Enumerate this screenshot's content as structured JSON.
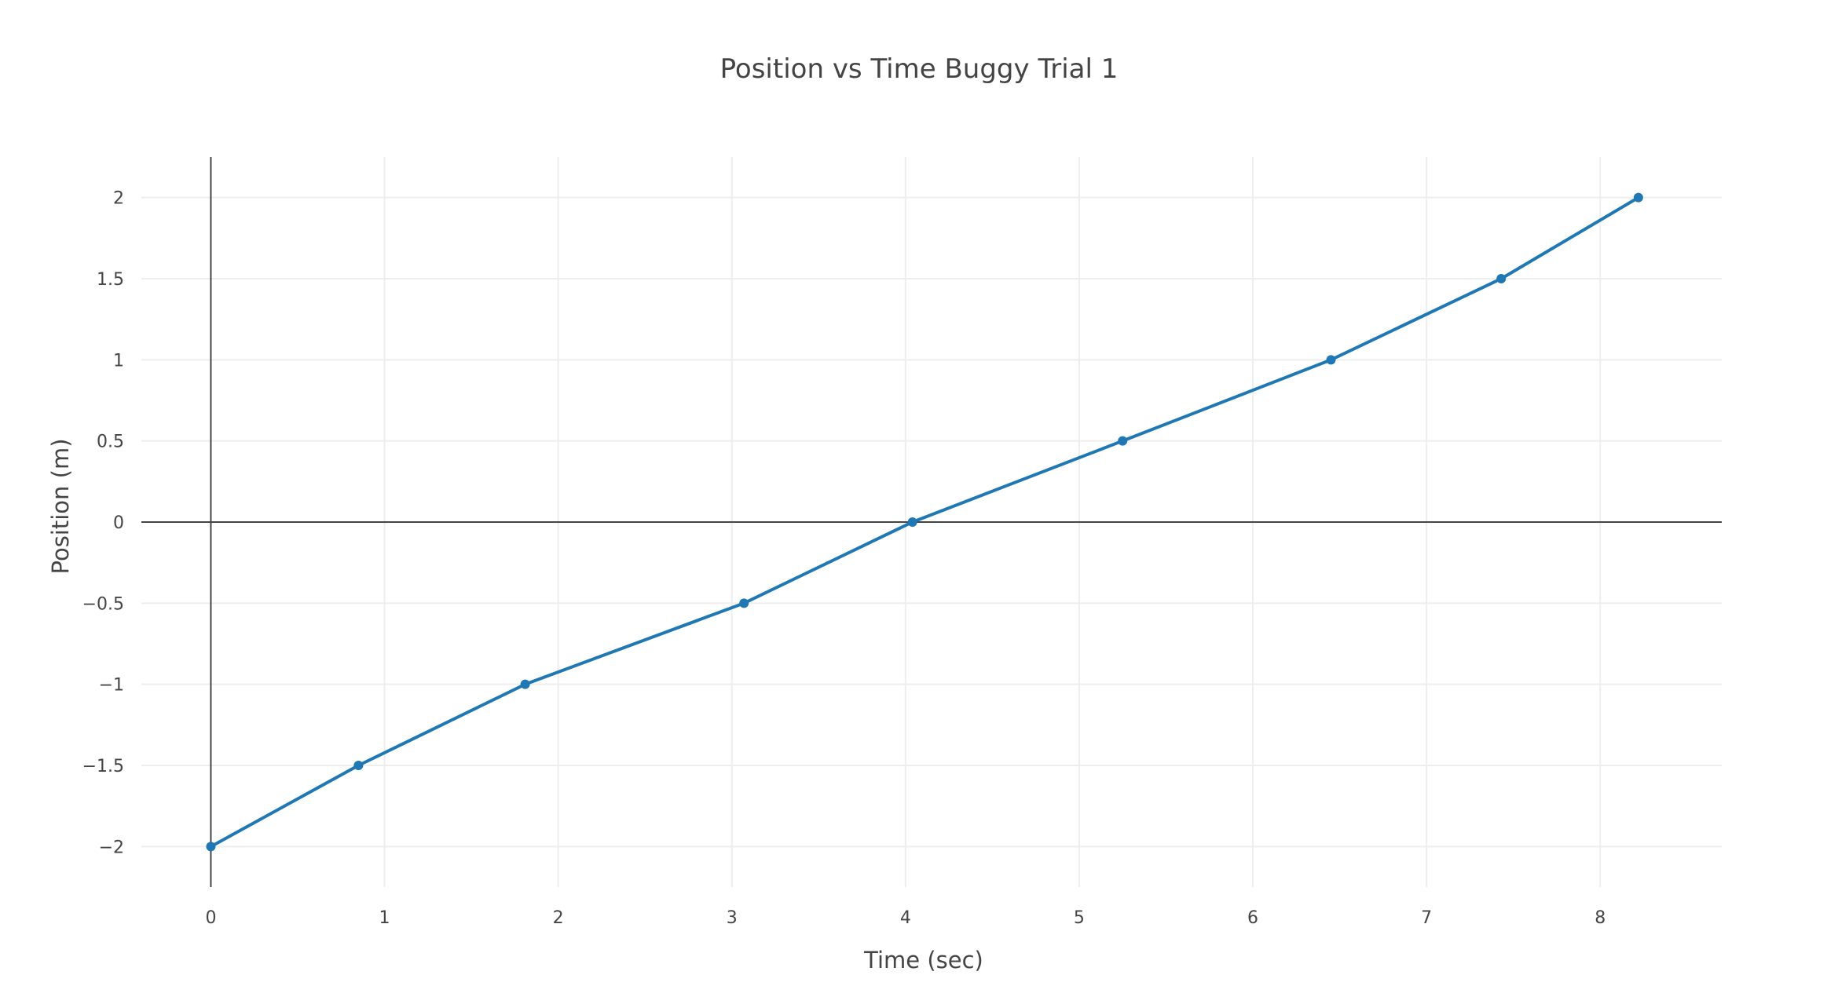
{
  "chart_data": {
    "type": "line",
    "title": "Position vs Time Buggy Trial 1",
    "xlabel": "Time (sec)",
    "ylabel": "Position (m)",
    "xlim": [
      -0.4,
      8.7
    ],
    "ylim": [
      -2.25,
      2.25
    ],
    "x_ticks": [
      0,
      1,
      2,
      3,
      4,
      5,
      6,
      7,
      8
    ],
    "y_ticks": [
      2,
      1.5,
      1,
      0.5,
      0,
      -0.5,
      -1,
      -1.5,
      -2
    ],
    "y_tick_labels": [
      "2",
      "1.5",
      "1",
      "0.5",
      "0",
      "−0.5",
      "−1",
      "−1.5",
      "−2"
    ],
    "grid": true,
    "legend": false,
    "series": [
      {
        "color": "#1f77b4",
        "markers": true,
        "x": [
          0,
          0.85,
          1.81,
          3.07,
          4.04,
          5.25,
          6.45,
          7.43,
          8.22
        ],
        "y": [
          -2,
          -1.5,
          -1,
          -0.5,
          0,
          0.5,
          1,
          1.5,
          2
        ]
      }
    ]
  }
}
